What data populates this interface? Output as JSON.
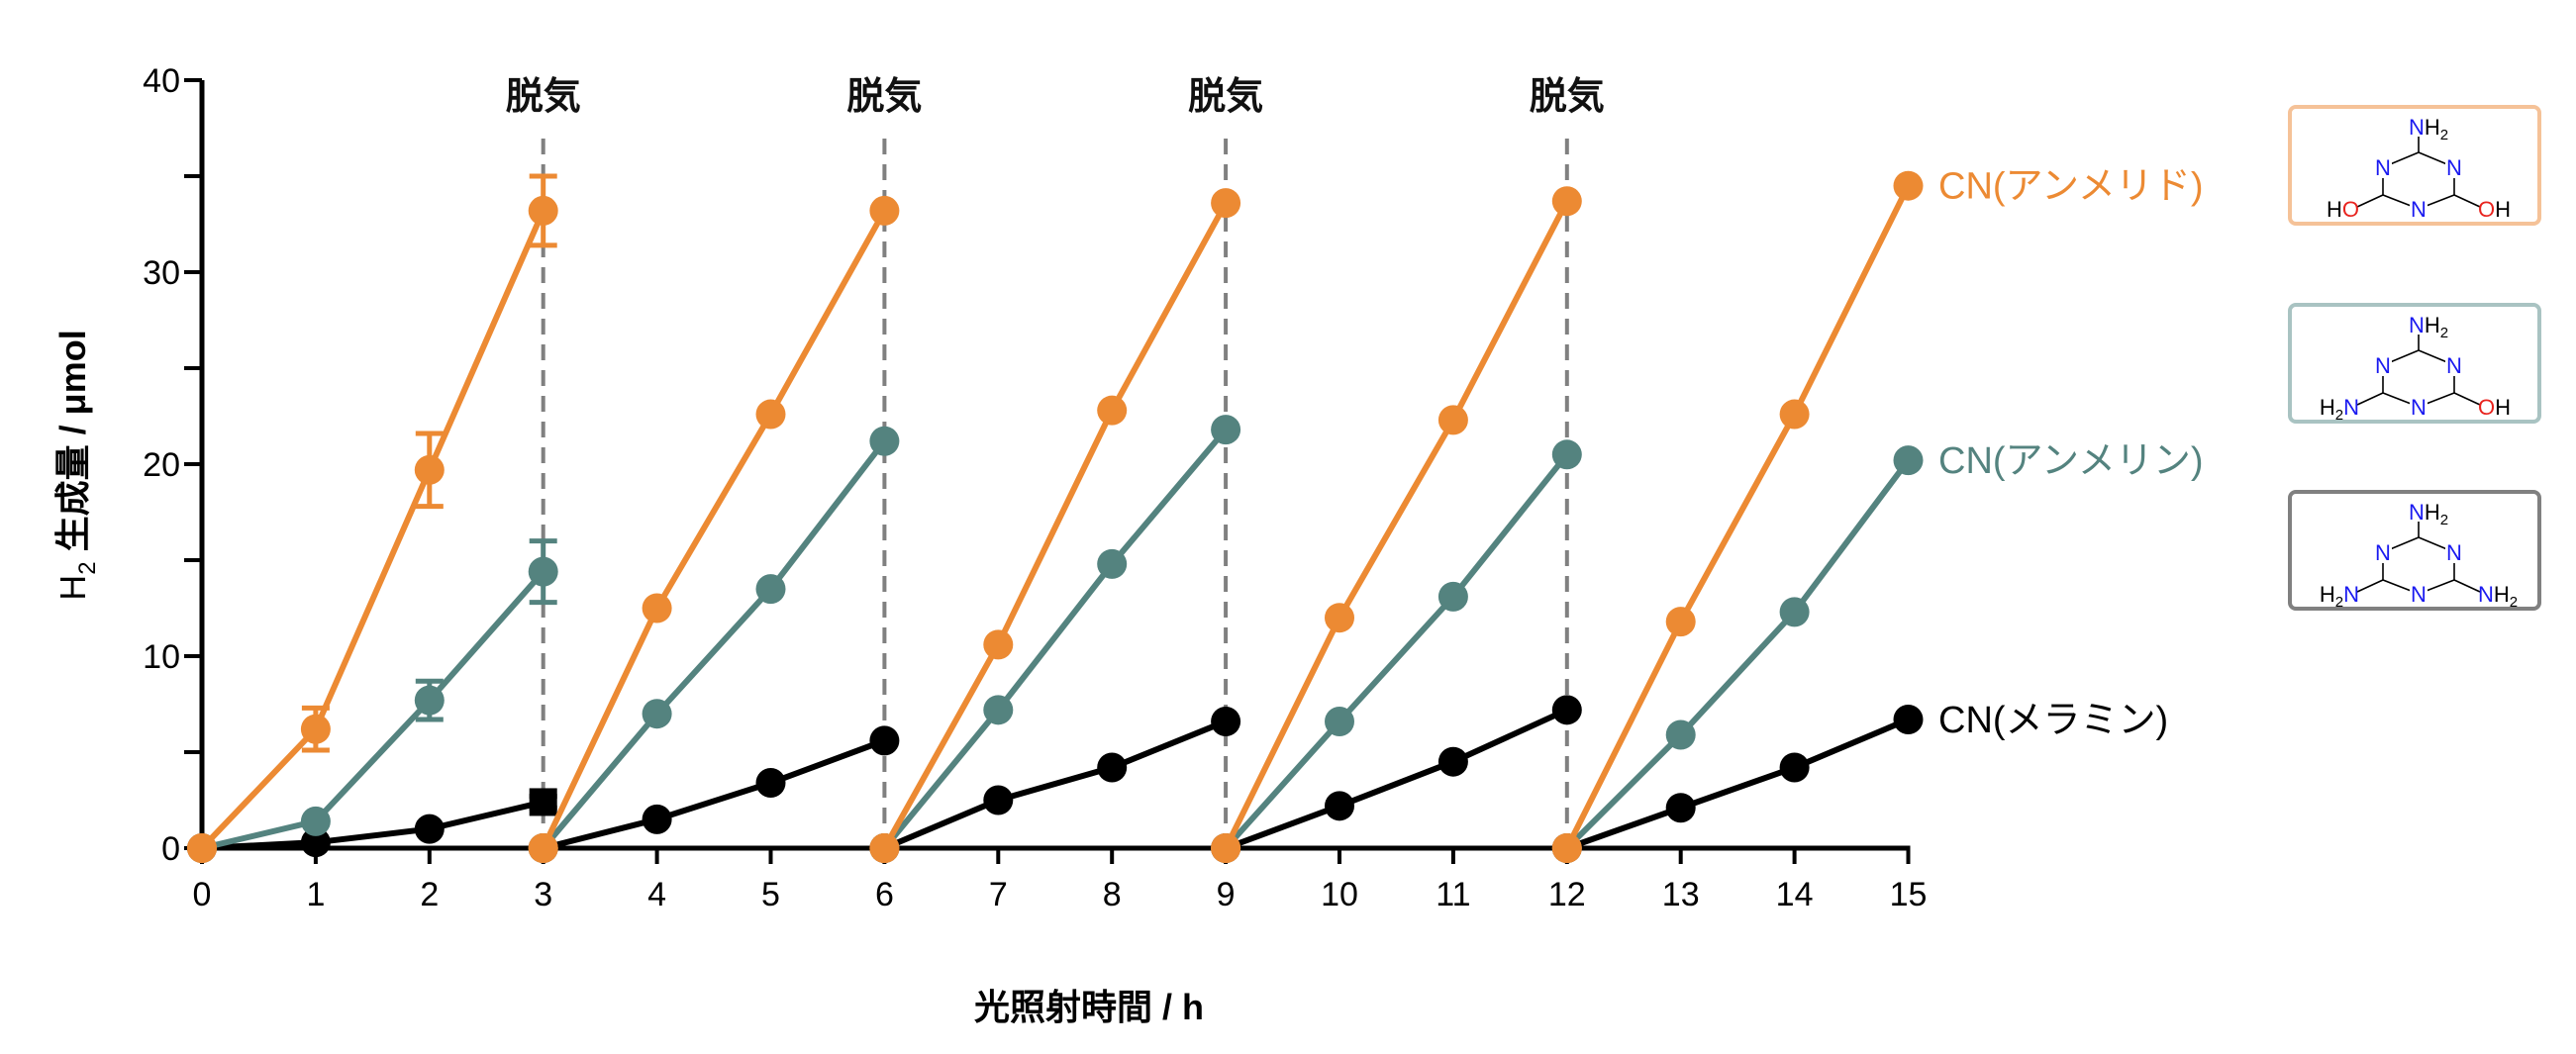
{
  "chart_data": {
    "type": "line",
    "xlabel": "光照射時間 / h",
    "ylabel": "H",
    "ylabel_sub": "2",
    "ylabel_rest": " 生成量 / μmol",
    "xlim": [
      0,
      15
    ],
    "ylim": [
      0,
      40
    ],
    "xticks": [
      "0",
      "1",
      "2",
      "3",
      "4",
      "5",
      "6",
      "7",
      "8",
      "9",
      "10",
      "11",
      "12",
      "13",
      "14",
      "15"
    ],
    "yticks": [
      "0",
      "10",
      "20",
      "30",
      "40"
    ],
    "grid": false,
    "annotations": [
      {
        "x": 3,
        "text": "脱気"
      },
      {
        "x": 6,
        "text": "脱気"
      },
      {
        "x": 9,
        "text": "脱気"
      },
      {
        "x": 12,
        "text": "脱気"
      }
    ],
    "series": [
      {
        "name": "CN(アンメリド)",
        "color": "#EC8A33",
        "segments": [
          {
            "x": [
              0,
              1,
              2,
              3
            ],
            "y": [
              0,
              6.2,
              19.7,
              33.2
            ],
            "err": [
              0,
              1.1,
              1.9,
              1.8
            ]
          },
          {
            "x": [
              3,
              4,
              5,
              6
            ],
            "y": [
              0,
              12.5,
              22.6,
              33.2
            ]
          },
          {
            "x": [
              6,
              7,
              8,
              9
            ],
            "y": [
              0,
              10.6,
              22.8,
              33.6
            ]
          },
          {
            "x": [
              9,
              10,
              11,
              12
            ],
            "y": [
              0,
              12.0,
              22.3,
              33.7
            ]
          },
          {
            "x": [
              12,
              13,
              14,
              15
            ],
            "y": [
              0,
              11.8,
              22.6,
              34.5
            ]
          }
        ]
      },
      {
        "name": "CN(アンメリン)",
        "color": "#54837F",
        "segments": [
          {
            "x": [
              0,
              1,
              2,
              3
            ],
            "y": [
              0,
              1.4,
              7.7,
              14.4
            ],
            "err": [
              0,
              0.2,
              1.0,
              1.6
            ]
          },
          {
            "x": [
              3,
              4,
              5,
              6
            ],
            "y": [
              0,
              7.0,
              13.5,
              21.2
            ]
          },
          {
            "x": [
              6,
              7,
              8,
              9
            ],
            "y": [
              0,
              7.2,
              14.8,
              21.8
            ]
          },
          {
            "x": [
              9,
              10,
              11,
              12
            ],
            "y": [
              0,
              6.6,
              13.1,
              20.5
            ]
          },
          {
            "x": [
              12,
              13,
              14,
              15
            ],
            "y": [
              0,
              5.9,
              12.3,
              20.2
            ]
          }
        ]
      },
      {
        "name": "CN(メラミン)",
        "color": "#000000",
        "segments": [
          {
            "x": [
              0,
              1,
              2,
              3
            ],
            "y": [
              0,
              0.3,
              1.0,
              2.4
            ],
            "err": [
              0,
              0,
              0,
              0.3
            ]
          },
          {
            "x": [
              3,
              4,
              5,
              6
            ],
            "y": [
              0,
              1.5,
              3.4,
              5.6
            ]
          },
          {
            "x": [
              6,
              7,
              8,
              9
            ],
            "y": [
              0,
              2.5,
              4.2,
              6.6
            ]
          },
          {
            "x": [
              9,
              10,
              11,
              12
            ],
            "y": [
              0,
              2.2,
              4.5,
              7.2
            ]
          },
          {
            "x": [
              12,
              13,
              14,
              15
            ],
            "y": [
              0,
              2.1,
              4.2,
              6.7
            ]
          }
        ]
      }
    ]
  },
  "structures": [
    {
      "name": "ammelide",
      "border": "#F5C298",
      "top": [
        "N",
        "H2"
      ],
      "left": [
        "HO"
      ],
      "right": [
        "OH"
      ]
    },
    {
      "name": "ammeline",
      "border": "#A9C3C2",
      "top": [
        "N",
        "H2"
      ],
      "left": [
        "H2N"
      ],
      "right": [
        "OH"
      ]
    },
    {
      "name": "melamine",
      "border": "#808080",
      "top": [
        "N",
        "H2"
      ],
      "left": [
        "H2N"
      ],
      "right": [
        "NH2"
      ]
    }
  ],
  "colors": {
    "nitrogen": "#1A1AF0",
    "oxygen": "#E8231E",
    "dashed": "#808080"
  }
}
